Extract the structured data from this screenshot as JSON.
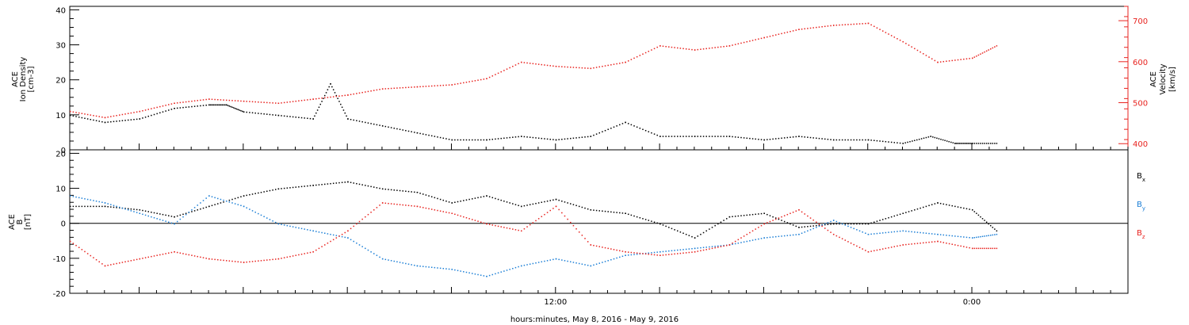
{
  "figure": {
    "xlabel": "hours:minutes, May  8, 2016 - May  9, 2016",
    "x_ticks": [
      {
        "hour": 12,
        "label": "12:00"
      },
      {
        "hour": 24,
        "label": "0:00"
      }
    ]
  },
  "chart_data": [
    {
      "type": "scatter",
      "panel": "top",
      "x_unit": "hours since 2016-05-08 00:00",
      "xlim": [
        -2,
        28.5
      ],
      "ylabel_left": [
        "ACE",
        "Ion Density",
        "[cm-3]"
      ],
      "ylabel_right": [
        "ACE",
        "Velocity",
        "[km/s]"
      ],
      "ylim_left": [
        0,
        41
      ],
      "ylim_right": [
        385,
        735
      ],
      "yticks_left": [
        0,
        10,
        20,
        30,
        40
      ],
      "yticks_right": [
        400,
        500,
        600,
        700
      ],
      "series": [
        {
          "name": "Ion Density",
          "axis": "left",
          "color": "#000000",
          "x": [
            -2,
            -1,
            0,
            1,
            2,
            2.5,
            3,
            4,
            5,
            5.5,
            6,
            7,
            8,
            9,
            10,
            11,
            12,
            13,
            14,
            15,
            16,
            17,
            18,
            19,
            20,
            21,
            22,
            22.8,
            23.5,
            24,
            24.7
          ],
          "y": [
            10,
            8,
            9,
            12,
            13,
            13,
            11,
            10,
            9,
            19,
            9,
            7,
            5,
            3,
            3,
            4,
            3,
            4,
            8,
            4,
            4,
            4,
            3,
            4,
            3,
            3,
            2,
            4,
            2,
            2,
            2
          ]
        },
        {
          "name": "Velocity",
          "axis": "right",
          "color": "#e8231f",
          "x": [
            -2,
            -1,
            0,
            1,
            2,
            3,
            4,
            5,
            6,
            7,
            8,
            9,
            10,
            11,
            12,
            13,
            14,
            15,
            16,
            17,
            18,
            19,
            20,
            21,
            22,
            23,
            24,
            24.7
          ],
          "y": [
            480,
            465,
            480,
            500,
            510,
            505,
            500,
            510,
            520,
            535,
            540,
            545,
            560,
            600,
            590,
            585,
            600,
            640,
            630,
            640,
            660,
            680,
            690,
            695,
            650,
            600,
            610,
            640
          ]
        }
      ]
    },
    {
      "type": "scatter",
      "panel": "bottom",
      "x_unit": "hours since 2016-05-08 00:00",
      "xlim": [
        -2,
        28.5
      ],
      "ylabel": [
        "ACE",
        "B",
        "[nT]"
      ],
      "ylim": [
        -20,
        21
      ],
      "yticks": [
        -20,
        -10,
        0,
        10,
        20
      ],
      "zero_line": true,
      "series": [
        {
          "name": "Bx",
          "label_main": "B",
          "label_sub": "x",
          "color": "#000000",
          "x": [
            -2,
            -1,
            0,
            1,
            2,
            3,
            4,
            5,
            6,
            7,
            8,
            9,
            10,
            11,
            12,
            13,
            14,
            15,
            16,
            17,
            18,
            19,
            20,
            21,
            22,
            23,
            24,
            24.7
          ],
          "y": [
            5,
            5,
            4,
            2,
            5,
            8,
            10,
            11,
            12,
            10,
            9,
            6,
            8,
            5,
            7,
            4,
            3,
            0,
            -4,
            2,
            3,
            -1,
            0,
            0,
            3,
            6,
            4,
            -2
          ]
        },
        {
          "name": "By",
          "label_main": "B",
          "label_sub": "y",
          "color": "#1c7fd6",
          "x": [
            -2,
            -1,
            0,
            1,
            2,
            3,
            4,
            5,
            6,
            7,
            8,
            9,
            10,
            11,
            12,
            13,
            14,
            15,
            16,
            17,
            18,
            19,
            20,
            21,
            22,
            23,
            24,
            24.7
          ],
          "y": [
            8,
            6,
            3,
            0,
            8,
            5,
            0,
            -2,
            -4,
            -10,
            -12,
            -13,
            -15,
            -12,
            -10,
            -12,
            -9,
            -8,
            -7,
            -6,
            -4,
            -3,
            1,
            -3,
            -2,
            -3,
            -4,
            -3
          ]
        },
        {
          "name": "Bz",
          "label_main": "B",
          "label_sub": "z",
          "color": "#e8231f",
          "x": [
            -2,
            -1,
            0,
            1,
            2,
            3,
            4,
            5,
            6,
            7,
            8,
            9,
            10,
            11,
            12,
            13,
            14,
            15,
            16,
            17,
            18,
            19,
            20,
            21,
            22,
            23,
            24,
            24.7
          ],
          "y": [
            -5,
            -12,
            -10,
            -8,
            -10,
            -11,
            -10,
            -8,
            -2,
            6,
            5,
            3,
            0,
            -2,
            5,
            -6,
            -8,
            -9,
            -8,
            -6,
            0,
            4,
            -3,
            -8,
            -6,
            -5,
            -7,
            -7
          ]
        }
      ]
    }
  ]
}
